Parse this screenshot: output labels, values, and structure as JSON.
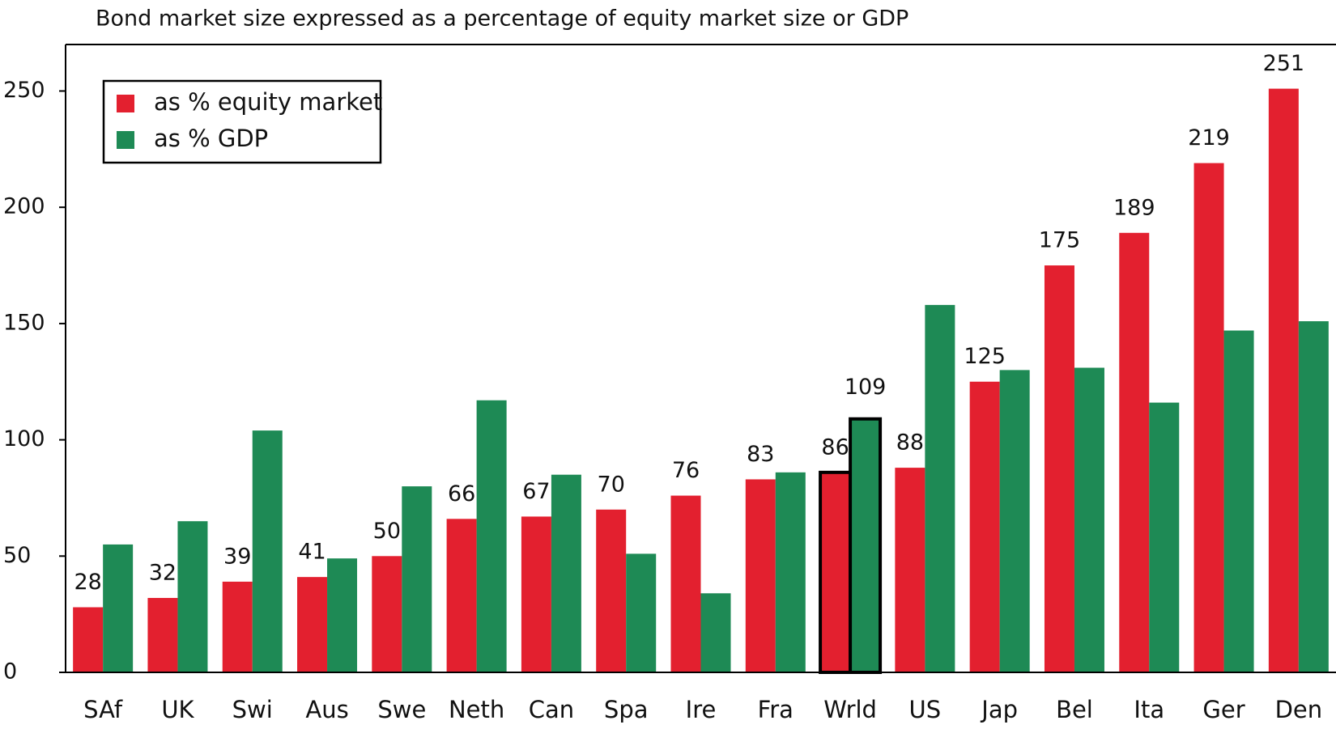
{
  "chart_data": {
    "type": "bar",
    "title": "Bond market size expressed as a percentage of equity market size or GDP",
    "categories": [
      "SAf",
      "UK",
      "Swi",
      "Aus",
      "Swe",
      "Neth",
      "Can",
      "Spa",
      "Ire",
      "Fra",
      "Wrld",
      "US",
      "Jap",
      "Bel",
      "Ita",
      "Ger",
      "Den"
    ],
    "series": [
      {
        "name": "as % equity market",
        "color": "#e3202f",
        "data_labels": true,
        "values": [
          28,
          32,
          39,
          41,
          50,
          66,
          67,
          70,
          76,
          83,
          86,
          88,
          125,
          175,
          189,
          219,
          251
        ]
      },
      {
        "name": "as % GDP",
        "color": "#1e8a55",
        "values": [
          55,
          65,
          104,
          49,
          80,
          117,
          85,
          51,
          34,
          86,
          109,
          158,
          130,
          131,
          116,
          147,
          151
        ],
        "value_labels": [
          null,
          null,
          null,
          null,
          null,
          null,
          null,
          null,
          null,
          null,
          "109",
          null,
          null,
          null,
          null,
          null,
          null
        ]
      }
    ],
    "highlight": "Wrld",
    "ylim": [
      0,
      270
    ],
    "yticks": [
      0,
      50,
      100,
      150,
      200,
      250
    ],
    "legend": "upper left"
  }
}
